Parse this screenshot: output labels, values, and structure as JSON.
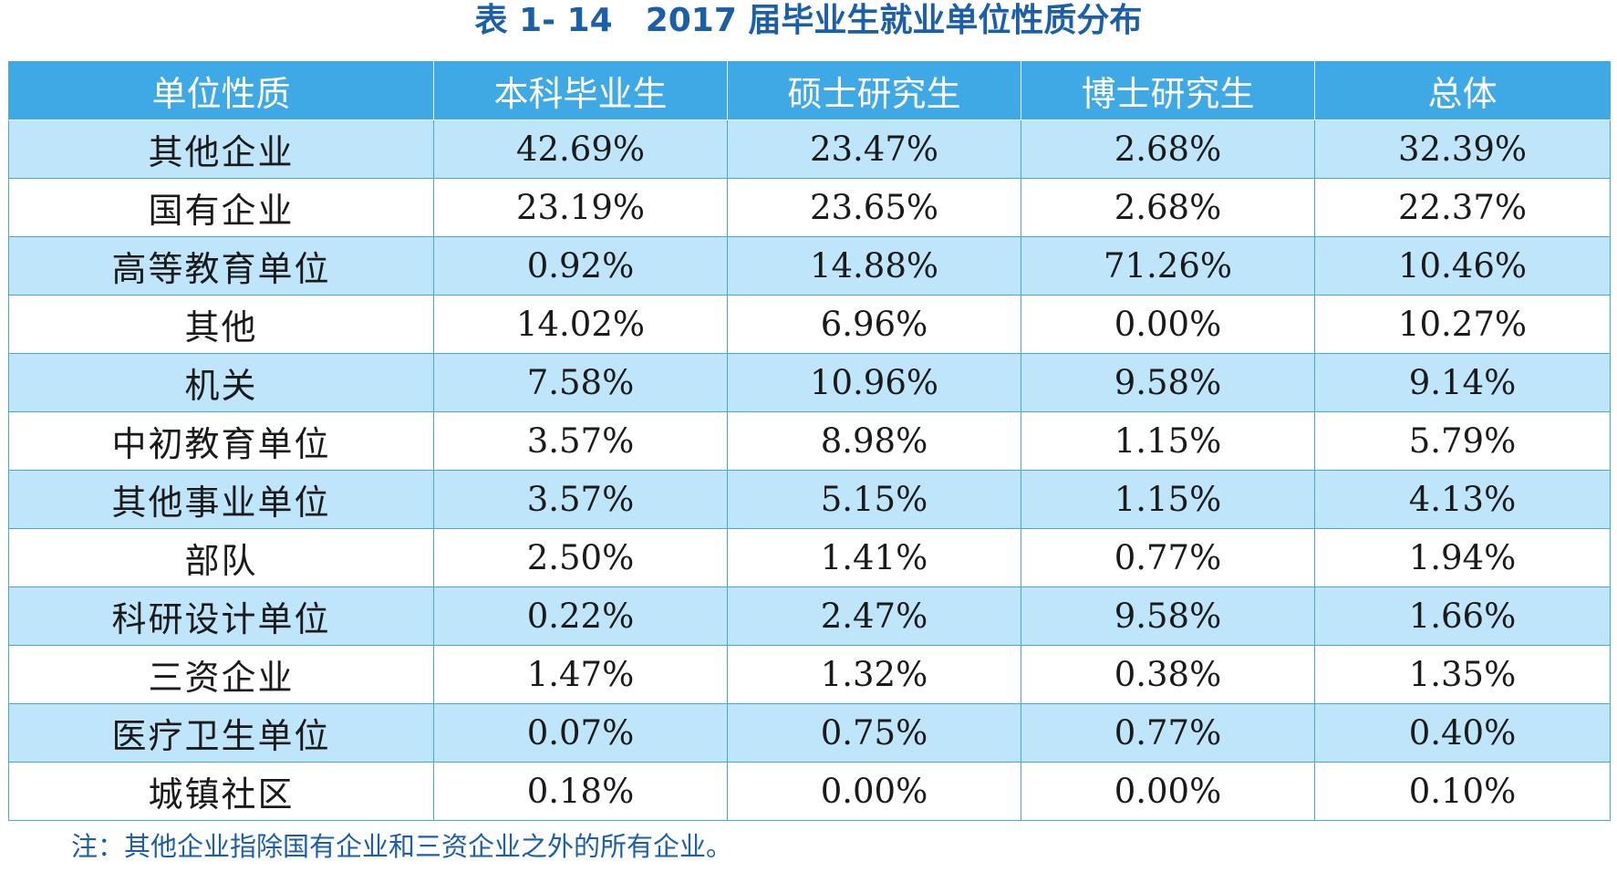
{
  "caption": "表 1- 14　2017 届毕业生就业单位性质分布",
  "table": {
    "headers": [
      "单位性质",
      "本科毕业生",
      "硕士研究生",
      "博士研究生",
      "总体"
    ],
    "rows": [
      [
        "其他企业",
        "42.69%",
        "23.47%",
        "2.68%",
        "32.39%"
      ],
      [
        "国有企业",
        "23.19%",
        "23.65%",
        "2.68%",
        "22.37%"
      ],
      [
        "高等教育单位",
        "0.92%",
        "14.88%",
        "71.26%",
        "10.46%"
      ],
      [
        "其他",
        "14.02%",
        "6.96%",
        "0.00%",
        "10.27%"
      ],
      [
        "机关",
        "7.58%",
        "10.96%",
        "9.58%",
        "9.14%"
      ],
      [
        "中初教育单位",
        "3.57%",
        "8.98%",
        "1.15%",
        "5.79%"
      ],
      [
        "其他事业单位",
        "3.57%",
        "5.15%",
        "1.15%",
        "4.13%"
      ],
      [
        "部队",
        "2.50%",
        "1.41%",
        "0.77%",
        "1.94%"
      ],
      [
        "科研设计单位",
        "0.22%",
        "2.47%",
        "9.58%",
        "1.66%"
      ],
      [
        "三资企业",
        "1.47%",
        "1.32%",
        "0.38%",
        "1.35%"
      ],
      [
        "医疗卫生单位",
        "0.07%",
        "0.75%",
        "0.77%",
        "0.40%"
      ],
      [
        "城镇社区",
        "0.18%",
        "0.00%",
        "0.00%",
        "0.10%"
      ]
    ]
  },
  "note": "注：其他企业指除国有企业和三资企业之外的所有企业。",
  "colors": {
    "caption_text": "#1a5fa8",
    "header_bg": "#3fa9e6",
    "header_text": "#ffffff",
    "odd_row_bg": "#bfe5fb",
    "even_row_bg": "#ffffff",
    "border": "#3fa9e6",
    "note_text": "#1a5fa8"
  }
}
